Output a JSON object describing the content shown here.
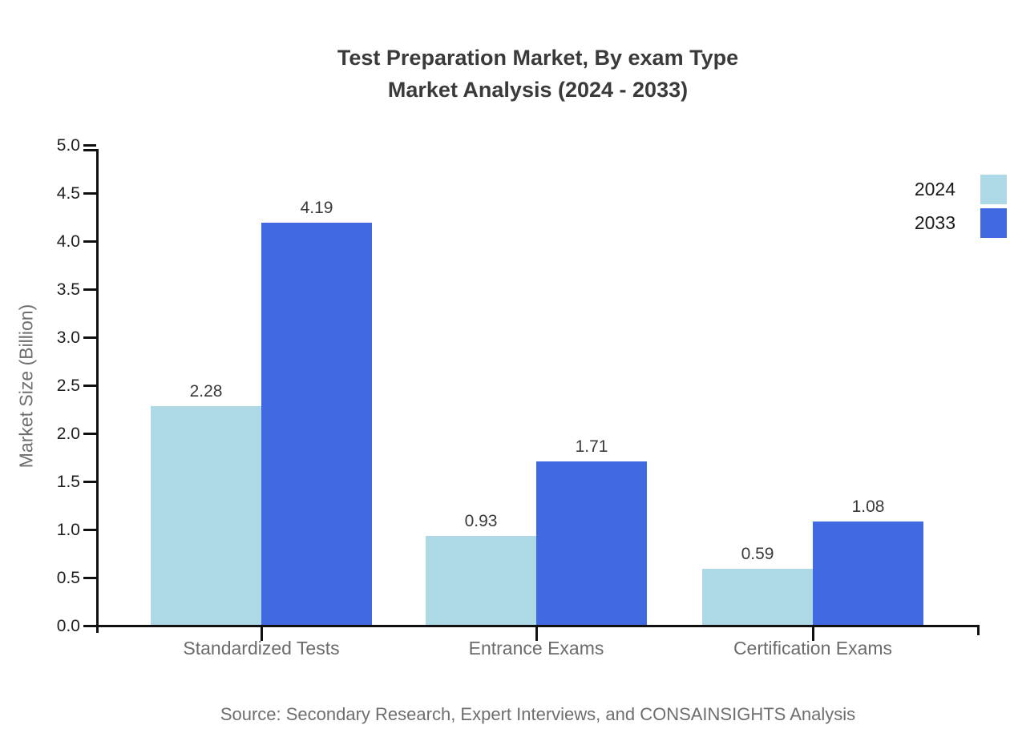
{
  "title": {
    "line1": "Test Preparation Market, By exam Type",
    "line2": "Market Analysis (2024 - 2033)"
  },
  "source": "Source: Secondary Research, Expert Interviews, and CONSAINSIGHTS Analysis",
  "chart_data": {
    "type": "bar",
    "title": "Test Preparation Market, By exam Type Market Analysis (2024 - 2033)",
    "categories": [
      "Standardized Tests",
      "Entrance Exams",
      "Certification Exams"
    ],
    "series": [
      {
        "name": "2024",
        "color": "#ADD8E6",
        "values": [
          2.28,
          0.93,
          0.59
        ]
      },
      {
        "name": "2033",
        "color": "#4169E1",
        "values": [
          4.19,
          1.71,
          1.08
        ]
      }
    ],
    "xlabel": "",
    "ylabel": "Market Size (Billion)",
    "ylim": [
      0.0,
      5.0
    ],
    "ytick_step": 0.5,
    "ytick_labels": [
      "5.0",
      "4.5",
      "4.0",
      "3.5",
      "3.0",
      "2.5",
      "2.0",
      "1.5",
      "1.0",
      "0.5",
      "0.0"
    ],
    "grid": false,
    "value_labels": true,
    "legend_position": "top-right",
    "axis_color": "#111111",
    "background_color": "#ffffff"
  }
}
